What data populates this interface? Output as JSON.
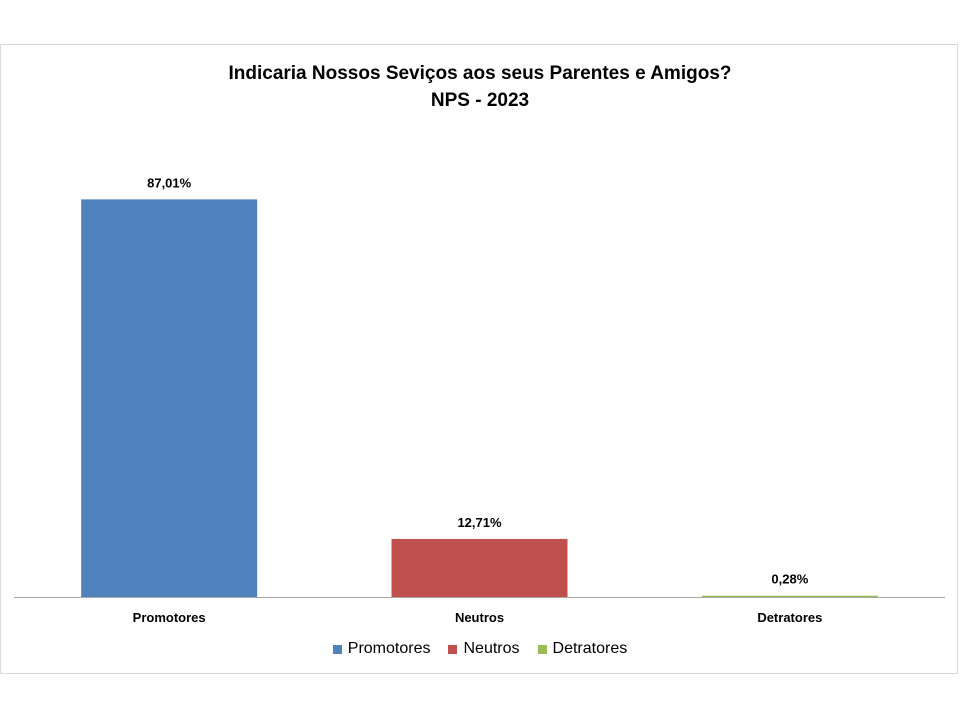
{
  "chart_data": {
    "type": "bar",
    "title": "Indicaria Nossos Seviços aos seus Parentes e Amigos?",
    "subtitle": "NPS - 2023",
    "xlabel": "",
    "ylabel": "",
    "categories": [
      "Promotores",
      "Neutros",
      "Detratores"
    ],
    "values": [
      87.01,
      12.71,
      0.28
    ],
    "data_labels": [
      "87,01%",
      "12,71%",
      "0,28%"
    ],
    "colors": [
      "#4f81bd",
      "#c0504d",
      "#9bbb59"
    ],
    "ylim": [
      0,
      100
    ],
    "grid": false,
    "legend": {
      "position": "bottom",
      "entries": [
        "Promotores",
        "Neutros",
        "Detratores"
      ]
    }
  }
}
